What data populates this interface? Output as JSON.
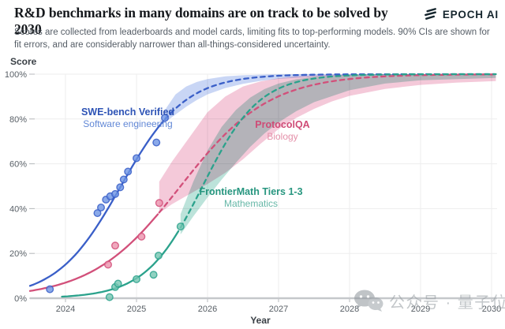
{
  "header": {
    "title": "R&D benchmarks in many domains are on track to be solved by 2030",
    "subtitle": "Scores are collected from leaderboards and model cards, limiting fits to top-performing models. 90% CIs are shown for fit errors, and are considerably narrower than all-things-considered uncertainty.",
    "logo_text": "EPOCH AI"
  },
  "watermark": {
    "text": "公众号 · 量子位"
  },
  "chart_data": {
    "type": "line",
    "title": "R&D benchmarks in many domains are on track to be solved by 2030",
    "xlabel": "Year",
    "ylabel": "Score",
    "xlim": [
      2023.5,
      2030.06
    ],
    "ylim": [
      0,
      100
    ],
    "x_ticks": [
      2024,
      2025,
      2026,
      2027,
      2028,
      2029,
      2030
    ],
    "y_ticks": [
      0,
      20,
      40,
      60,
      80,
      100
    ],
    "y_tick_suffix": "%",
    "grid": true,
    "legend_position": "inline-labels",
    "series": [
      {
        "name": "SWE-bench Verified",
        "domain": "Software engineering",
        "colors": {
          "line": "#3a5fc8",
          "point_fill": "#6d94e4",
          "band": "#c3d2f4",
          "label": "#2d53b5",
          "sublabel": "#6288d6"
        },
        "fit": {
          "type": "logistic",
          "k": 2.22,
          "t0": 2024.78,
          "solid_from": 2023.5,
          "split": 2025.4,
          "end": 2030.06
        },
        "points": [
          [
            2023.78,
            4.0
          ],
          [
            2024.45,
            38.0
          ],
          [
            2024.5,
            40.5
          ],
          [
            2024.57,
            44.0
          ],
          [
            2024.63,
            45.5
          ],
          [
            2024.7,
            46.5
          ],
          [
            2024.77,
            49.5
          ],
          [
            2024.82,
            53.0
          ],
          [
            2024.88,
            56.5
          ],
          [
            2025.0,
            62.5
          ],
          [
            2025.28,
            69.5
          ],
          [
            2025.4,
            80.5
          ]
        ],
        "band": [
          [
            2025.4,
            78.5,
            84
          ],
          [
            2025.55,
            82,
            91
          ],
          [
            2025.7,
            85.5,
            94.5
          ],
          [
            2025.85,
            88.5,
            96.5
          ],
          [
            2026.0,
            91,
            97.8
          ],
          [
            2026.25,
            93.8,
            99
          ],
          [
            2026.5,
            95.7,
            99.5
          ],
          [
            2026.75,
            97,
            99.8
          ],
          [
            2027.0,
            97.9,
            100
          ],
          [
            2027.5,
            98.9,
            100
          ],
          [
            2028.0,
            99.4,
            100
          ],
          [
            2028.5,
            99.6,
            100
          ],
          [
            2029.0,
            99.7,
            100
          ],
          [
            2030.06,
            99.8,
            100
          ]
        ]
      },
      {
        "name": "ProtocolQA",
        "domain": "Biology",
        "colors": {
          "line": "#d2507a",
          "point_fill": "#eb92ac",
          "band": "#f3c3d5",
          "label": "#cf4b76",
          "sublabel": "#e490a9"
        },
        "fit": {
          "type": "logistic",
          "k": 1.6,
          "t0": 2025.62,
          "solid_from": 2023.5,
          "split": 2025.32,
          "end": 2030.06
        },
        "points": [
          [
            2024.6,
            15.0
          ],
          [
            2024.7,
            23.5
          ],
          [
            2025.07,
            27.5
          ],
          [
            2025.32,
            42.5
          ]
        ],
        "band": [
          [
            2025.32,
            38,
            52
          ],
          [
            2025.5,
            42,
            61
          ],
          [
            2025.75,
            46.5,
            72
          ],
          [
            2026.0,
            51,
            83
          ],
          [
            2026.25,
            56,
            90
          ],
          [
            2026.5,
            62,
            94.5
          ],
          [
            2026.75,
            69,
            96.8
          ],
          [
            2027.0,
            75.5,
            98.2
          ],
          [
            2027.25,
            80.5,
            99
          ],
          [
            2027.5,
            84.5,
            99.4
          ],
          [
            2027.75,
            87.8,
            99.7
          ],
          [
            2028.0,
            90.3,
            99.8
          ],
          [
            2028.5,
            93.4,
            100
          ],
          [
            2029.0,
            95.2,
            100
          ],
          [
            2029.5,
            96.2,
            100
          ],
          [
            2030.06,
            96.9,
            100
          ]
        ]
      },
      {
        "name": "FrontierMath Tiers 1-3",
        "domain": "Mathematics",
        "colors": {
          "line": "#2ba28c",
          "point_fill": "#74c6b2",
          "band": "#b5e0d6",
          "label": "#27967f",
          "sublabel": "#66b7a7"
        },
        "fit": {
          "type": "logistic",
          "k": 2.5,
          "t0": 2025.93,
          "solid_from": 2023.95,
          "split": 2025.62,
          "end": 2030.06
        },
        "points": [
          [
            2024.62,
            0.5
          ],
          [
            2024.7,
            5.0
          ],
          [
            2024.74,
            6.5
          ],
          [
            2025.0,
            8.5
          ],
          [
            2025.24,
            10.5
          ],
          [
            2025.31,
            19.0
          ],
          [
            2025.62,
            32.0
          ]
        ],
        "band": [
          [
            2025.62,
            28.5,
            37.5
          ],
          [
            2025.8,
            36.5,
            52
          ],
          [
            2026.0,
            45,
            66
          ],
          [
            2026.2,
            53,
            76.5
          ],
          [
            2026.4,
            60.5,
            84
          ],
          [
            2026.6,
            67.5,
            89.5
          ],
          [
            2026.8,
            73.5,
            93.3
          ],
          [
            2027.0,
            78.5,
            95.8
          ],
          [
            2027.25,
            83.5,
            97.7
          ],
          [
            2027.5,
            87.5,
            98.8
          ],
          [
            2028.0,
            92.8,
            99.7
          ],
          [
            2028.5,
            95.8,
            100
          ],
          [
            2029.0,
            97.3,
            100
          ],
          [
            2030.06,
            98.3,
            100
          ]
        ]
      }
    ]
  }
}
